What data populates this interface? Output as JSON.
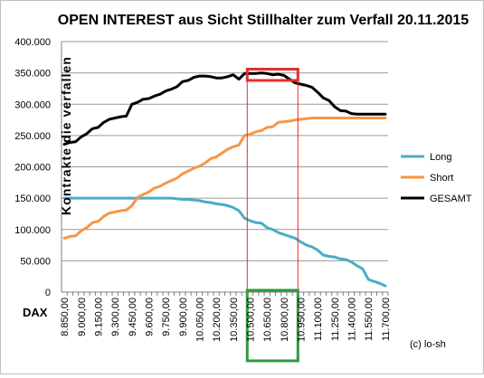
{
  "chart_data": {
    "type": "line",
    "title": "OPEN INTEREST aus Sicht Stillhalter zum Verfall 20.11.2015",
    "ylabel": "Kontrakte die verfallen",
    "xlabel": "DAX",
    "ylim": [
      0,
      400000
    ],
    "yticks": [
      "0",
      "50.000",
      "100.000",
      "150.000",
      "200.000",
      "250.000",
      "300.000",
      "350.000",
      "400.000"
    ],
    "x_start": 8850,
    "x_step": 50,
    "x_count": 58,
    "xtick_labels": [
      "8.850,00",
      "9.000,00",
      "9.150,00",
      "9.300,00",
      "9.450,00",
      "9.600,00",
      "9.750,00",
      "9.900,00",
      "10.050,00",
      "10.200,00",
      "10.350,00",
      "10.500,00",
      "10.650,00",
      "10.800,00",
      "10.950,00",
      "11.100,00",
      "11.250,00",
      "11.400,00",
      "11.550,00",
      "11.700,00"
    ],
    "grid": true,
    "legend_position": "right",
    "series": [
      {
        "name": "Long",
        "color": "#4bacc6",
        "values": [
          150000,
          150000,
          150000,
          150000,
          150000,
          150000,
          150000,
          150000,
          150000,
          150000,
          150000,
          150000,
          150000,
          150000,
          150000,
          150000,
          150000,
          150000,
          150000,
          150000,
          149000,
          148000,
          148000,
          147000,
          146000,
          144000,
          143000,
          141000,
          140000,
          138000,
          135000,
          130000,
          118000,
          114000,
          111000,
          110000,
          103000,
          100000,
          95000,
          92000,
          89000,
          86000,
          80000,
          75000,
          72000,
          67000,
          59000,
          57000,
          56000,
          53000,
          52000,
          48000,
          42000,
          37000,
          20000,
          17000,
          14000,
          10000
        ]
      },
      {
        "name": "Short",
        "color": "#f79646",
        "values": [
          86000,
          89000,
          90000,
          98000,
          103000,
          111000,
          113000,
          121000,
          126000,
          128000,
          130000,
          131000,
          138000,
          151000,
          156000,
          160000,
          166000,
          169000,
          174000,
          178000,
          182000,
          189000,
          193000,
          198000,
          201000,
          206000,
          213000,
          216000,
          222000,
          228000,
          232000,
          235000,
          250000,
          252000,
          256000,
          258000,
          263000,
          264000,
          271000,
          272000,
          273000,
          275000,
          276000,
          277000,
          278000,
          278000,
          278000,
          278000,
          278000,
          278000,
          278000,
          278000,
          278000,
          278000,
          278000,
          278000,
          278000,
          278000
        ]
      },
      {
        "name": "GESAMT",
        "color": "#000000",
        "values": [
          236000,
          239000,
          240000,
          248000,
          253000,
          261000,
          263000,
          271000,
          276000,
          278000,
          280000,
          281000,
          300000,
          303000,
          308000,
          309000,
          313000,
          316000,
          321000,
          324000,
          328000,
          336000,
          338000,
          343000,
          345000,
          345000,
          344000,
          342000,
          342000,
          344000,
          347000,
          340000,
          349000,
          349000,
          349000,
          350000,
          349000,
          347000,
          348000,
          346000,
          340000,
          334000,
          332000,
          330000,
          327000,
          319000,
          310000,
          306000,
          296000,
          290000,
          289000,
          285000,
          284000,
          284000,
          284000,
          284000,
          284000,
          284000
        ]
      }
    ],
    "annotations": {
      "credit": "(c) lo-sh",
      "highlight_box_top_color": "#e03030",
      "highlight_box_bottom_color": "#2e9a3e",
      "highlight_x_range": [
        10450,
        10900
      ],
      "highlight_y_range": [
        338000,
        356000
      ]
    }
  }
}
